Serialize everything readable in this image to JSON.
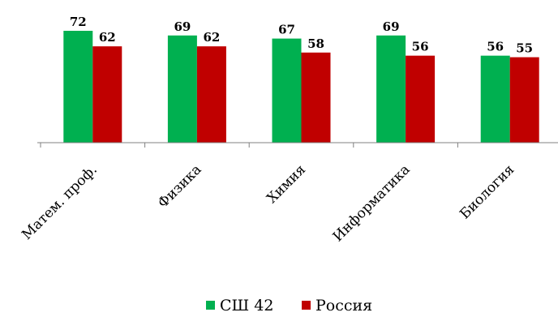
{
  "chart_data": {
    "type": "bar",
    "categories": [
      "Матем. проф.",
      "Физика",
      "Химия",
      "Информатика",
      "Биология"
    ],
    "series": [
      {
        "name": "СШ 42",
        "values": [
          72,
          69,
          67,
          69,
          56
        ],
        "color": "#00b050"
      },
      {
        "name": "Россия",
        "values": [
          62,
          62,
          58,
          56,
          55
        ],
        "color": "#c00000"
      }
    ],
    "ylim": [
      0,
      80
    ],
    "grid": false,
    "legend_position": "bottom"
  }
}
